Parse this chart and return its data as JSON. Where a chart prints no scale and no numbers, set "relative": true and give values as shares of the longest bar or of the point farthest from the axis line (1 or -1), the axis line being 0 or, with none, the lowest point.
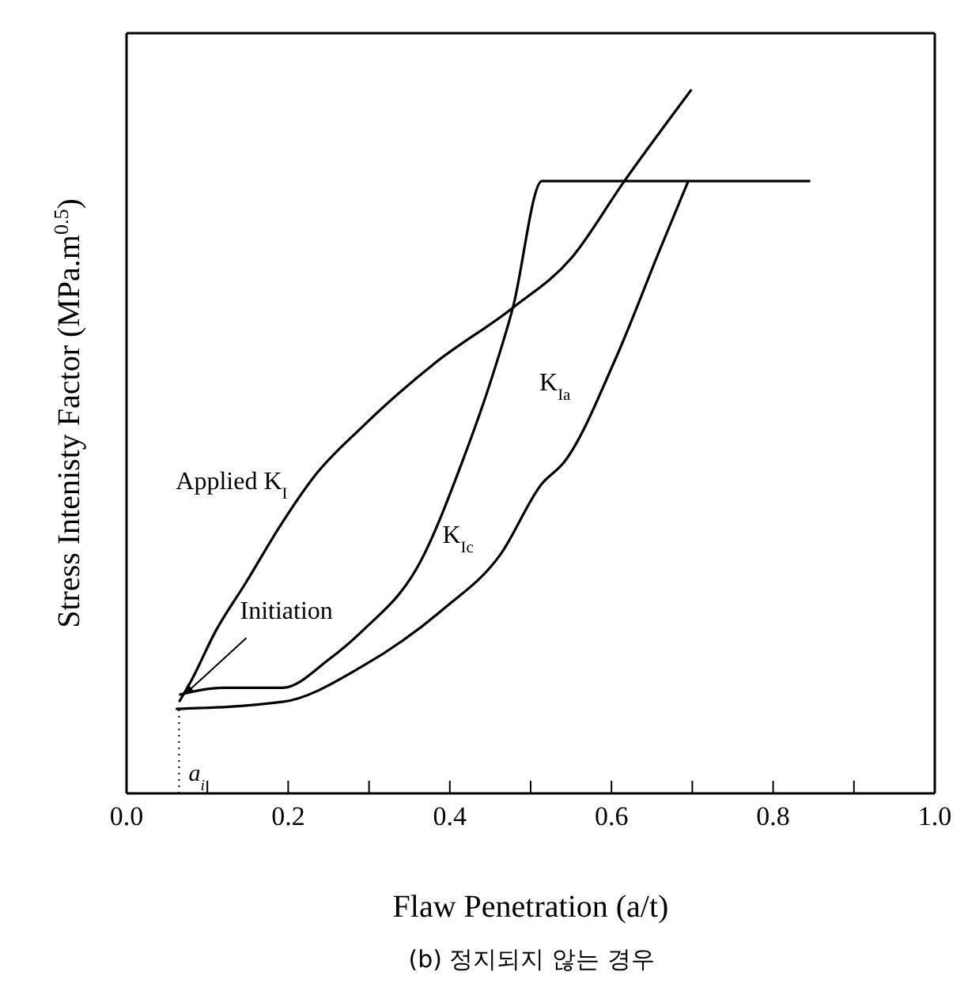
{
  "chart_data": {
    "type": "line",
    "relative": true,
    "xlabel": "Flaw Penetration (a/t)",
    "ylabel": "Stress Intenisty Factor (MPa.m$^{0.5}$)",
    "xlim": [
      0,
      1
    ],
    "xticks": [
      {
        "value": 0,
        "label": "0.0"
      },
      0.2,
      0.4,
      0.6,
      0.8,
      {
        "value": 1,
        "label": "1.0"
      }
    ],
    "marker": "none",
    "line_style": "solid",
    "series": [
      {
        "name": "Applied K$_{I}$",
        "color": "#000000",
        "x": [
          0.065,
          0.08,
          0.11,
          0.148,
          0.19,
          0.232,
          0.291,
          0.38,
          0.478,
          0.55,
          0.616,
          0.699
        ],
        "values": [
          0.13,
          0.16,
          0.23,
          0.3,
          0.38,
          0.45,
          0.52,
          0.61,
          0.69,
          0.76,
          0.87,
          1
        ]
      },
      {
        "name": "K$_{Ic}$",
        "color": "#000000",
        "x": [
          0.065,
          0.12,
          0.193,
          0.25,
          0.291,
          0.364,
          0.415,
          0.449,
          0.478,
          0.514,
          0.846
        ],
        "values": [
          0.14,
          0.15,
          0.15,
          0.19,
          0.23,
          0.33,
          0.47,
          0.58,
          0.69,
          0.87,
          0.87
        ]
      },
      {
        "name": "K$_{Ia}$",
        "color": "#000000",
        "x": [
          0.061,
          0.193,
          0.291,
          0.39,
          0.463,
          0.514,
          0.541,
          0.606,
          0.659,
          0.695
        ],
        "values": [
          0.12,
          0.13,
          0.18,
          0.26,
          0.34,
          0.44,
          0.47,
          0.62,
          0.77,
          0.87
        ]
      }
    ],
    "ref_lines": [
      {
        "axis": "x",
        "value": 0.065,
        "label": "a$_{i}$",
        "line_style": "dotted",
        "color": "#000000"
      }
    ],
    "annotations": [
      {
        "text": "Initiation",
        "x": 0.07,
        "y": 0.14
      },
      "(b) 정지되지 않는 경우"
    ]
  }
}
